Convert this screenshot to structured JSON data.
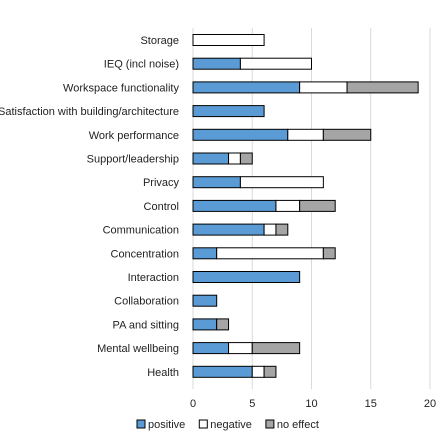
{
  "chart_data": {
    "type": "bar",
    "orientation": "horizontal",
    "stacked": true,
    "categories": [
      "Storage",
      "IEQ (incl noise)",
      "Workspace functionality",
      "Satisfaction with building/architecture",
      "Work performance",
      "Support/leadership",
      "Privacy",
      "Control",
      "Communication",
      "Concentration",
      "Interaction",
      "Collaboration",
      "PA and sitting",
      "Mental wellbeing",
      "Health"
    ],
    "series": [
      {
        "name": "positive",
        "color": "#5B9BD5",
        "values": [
          0,
          4,
          9,
          6,
          8,
          3,
          4,
          7,
          6,
          2,
          9,
          2,
          2,
          3,
          5
        ]
      },
      {
        "name": "negative",
        "color": "#FFFFFF",
        "values": [
          6,
          6,
          4,
          0,
          3,
          1,
          7,
          2,
          1,
          9,
          0,
          0,
          0,
          2,
          1
        ]
      },
      {
        "name": "no effect",
        "color": "#A5A5A5",
        "values": [
          0,
          0,
          6,
          0,
          4,
          1,
          0,
          3,
          1,
          1,
          0,
          0,
          1,
          4,
          1
        ]
      }
    ],
    "xlim": [
      0,
      20
    ],
    "xticks": [
      "0",
      "5",
      "10",
      "15",
      "20"
    ],
    "grid": "vertical",
    "legend_position": "bottom"
  }
}
